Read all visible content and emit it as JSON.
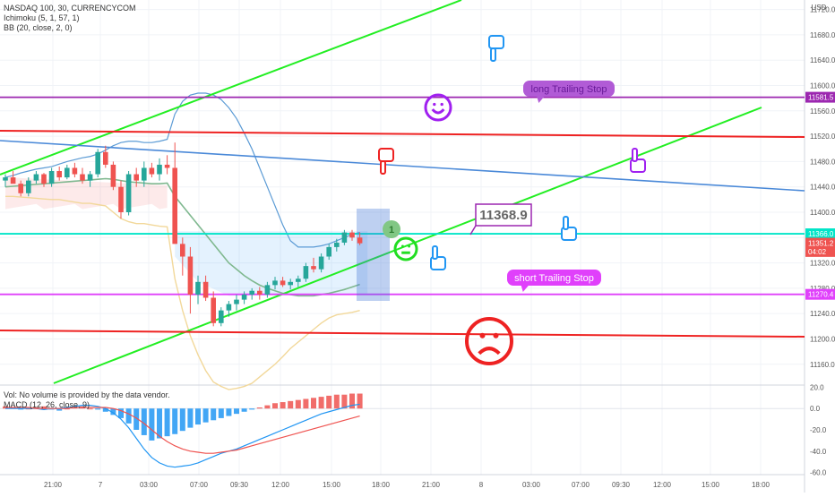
{
  "chart_data": {
    "type": "candlestick",
    "symbol_title": "NASDAQ 100, 30, CURRENCYCOM",
    "indicators": [
      "Ichimoku (5, 1, 57, 1)",
      "BB (20, close, 2, 0)"
    ],
    "currency": "USD",
    "y_ticks": [
      "11720.0",
      "11680.0",
      "11640.0",
      "11600.0",
      "11560.0",
      "11520.0",
      "11480.0",
      "11440.0",
      "11400.0",
      "11360.0",
      "11320.0",
      "11280.0",
      "11240.0",
      "11200.0",
      "11160.0"
    ],
    "y_range": [
      11130,
      11735
    ],
    "x_ticks": [
      "21:00",
      "7",
      "03:00",
      "07:00",
      "09:30",
      "12:00",
      "15:00",
      "18:00",
      "21:00",
      "8",
      "03:00",
      "07:00",
      "09:30",
      "12:00",
      "15:00",
      "18:00"
    ],
    "price_labels": [
      {
        "text": "11581.5",
        "value": 11581.5,
        "color": "#9c27b0"
      },
      {
        "text": "11366.0",
        "value": 11366,
        "color": "#00e5c8"
      },
      {
        "text": "11351.2",
        "value": 11351.2,
        "color": "#ef5350"
      },
      {
        "text": "04:02",
        "value": 11338,
        "color": "#ef5350"
      },
      {
        "text": "11270.4",
        "value": 11270.4,
        "color": "#e040fb"
      }
    ],
    "candles": [
      [
        11450,
        11460,
        11440,
        11455
      ],
      [
        11455,
        11465,
        11450,
        11445
      ],
      [
        11445,
        11450,
        11425,
        11430
      ],
      [
        11430,
        11455,
        11425,
        11450
      ],
      [
        11450,
        11465,
        11445,
        11460
      ],
      [
        11460,
        11462,
        11440,
        11445
      ],
      [
        11445,
        11470,
        11440,
        11465
      ],
      [
        11465,
        11472,
        11450,
        11455
      ],
      [
        11455,
        11475,
        11452,
        11470
      ],
      [
        11470,
        11478,
        11455,
        11460
      ],
      [
        11460,
        11470,
        11445,
        11450
      ],
      [
        11450,
        11465,
        11440,
        11460
      ],
      [
        11460,
        11500,
        11455,
        11495
      ],
      [
        11495,
        11505,
        11470,
        11475
      ],
      [
        11475,
        11480,
        11435,
        11440
      ],
      [
        11440,
        11450,
        11390,
        11400
      ],
      [
        11400,
        11465,
        11395,
        11460
      ],
      [
        11460,
        11470,
        11440,
        11450
      ],
      [
        11450,
        11480,
        11440,
        11470
      ],
      [
        11470,
        11478,
        11455,
        11460
      ],
      [
        11460,
        11485,
        11450,
        11475
      ],
      [
        11475,
        11490,
        11460,
        11470
      ],
      [
        11470,
        11510,
        11350,
        11350
      ],
      [
        11350,
        11360,
        11300,
        11330
      ],
      [
        11330,
        11345,
        11240,
        11270
      ],
      [
        11270,
        11300,
        11255,
        11290
      ],
      [
        11290,
        11300,
        11260,
        11265
      ],
      [
        11265,
        11275,
        11220,
        11225
      ],
      [
        11225,
        11250,
        11220,
        11245
      ],
      [
        11245,
        11260,
        11235,
        11255
      ],
      [
        11255,
        11270,
        11245,
        11262
      ],
      [
        11262,
        11275,
        11255,
        11270
      ],
      [
        11270,
        11280,
        11262,
        11276
      ],
      [
        11276,
        11282,
        11262,
        11270
      ],
      [
        11270,
        11290,
        11265,
        11285
      ],
      [
        11285,
        11298,
        11278,
        11292
      ],
      [
        11292,
        11298,
        11282,
        11285
      ],
      [
        11285,
        11295,
        11278,
        11290
      ],
      [
        11290,
        11300,
        11282,
        11295
      ],
      [
        11295,
        11320,
        11290,
        11315
      ],
      [
        11315,
        11328,
        11305,
        11310
      ],
      [
        11310,
        11335,
        11305,
        11330
      ],
      [
        11330,
        11350,
        11325,
        11345
      ],
      [
        11345,
        11358,
        11338,
        11352
      ],
      [
        11352,
        11372,
        11348,
        11368
      ],
      [
        11368,
        11372,
        11355,
        11360
      ],
      [
        11360,
        11368,
        11348,
        11351
      ]
    ],
    "annotations": [
      {
        "text": "long Trailing Stop",
        "color": "#b15bd6"
      },
      {
        "text": "short Trailing Stop",
        "color": "#e040fb"
      },
      {
        "text": "11368.9",
        "color": "#9c27b0"
      },
      {
        "text": "1",
        "color": "#4caf50"
      }
    ],
    "volume_note": "Vol: No volume is provided by the data vendor.",
    "macd_title": "MACD (12, 26, close, 9)",
    "macd_y_ticks": [
      "20.0",
      "0.0",
      "-20.0",
      "-40.0",
      "-60.0"
    ],
    "macd_range": [
      -62,
      22
    ],
    "macd_hist": [
      2,
      1,
      -1,
      0,
      1,
      2,
      -1,
      -2,
      0,
      1,
      2,
      0,
      -1,
      -3,
      -6,
      -9,
      -14,
      -20,
      -25,
      -30,
      -28,
      -26,
      -24,
      -21,
      -18,
      -15,
      -13,
      -11,
      -9,
      -7,
      -5,
      -3,
      -1,
      1,
      3,
      5,
      6,
      7,
      8,
      9,
      10,
      11,
      12,
      13,
      13,
      14,
      14
    ],
    "macd_line": [
      0,
      0,
      0,
      0,
      0,
      -1,
      0,
      0,
      1,
      2,
      3,
      3,
      2,
      0,
      -4,
      -10,
      -18,
      -28,
      -38,
      -46,
      -51,
      -54,
      -55,
      -54,
      -53,
      -51,
      -48,
      -45,
      -42,
      -40,
      -38,
      -35,
      -32,
      -29,
      -26,
      -23,
      -20,
      -17,
      -14,
      -11,
      -8,
      -5,
      -3,
      -1,
      1,
      3,
      4
    ],
    "signal_line": [
      1,
      1,
      1,
      1,
      0,
      0,
      0,
      0,
      0,
      1,
      1,
      1,
      1,
      1,
      0,
      -2,
      -5,
      -9,
      -14,
      -20,
      -26,
      -31,
      -35,
      -38,
      -40,
      -41,
      -42,
      -42,
      -41,
      -40,
      -39,
      -37,
      -35,
      -33,
      -31,
      -29,
      -27,
      -25,
      -23,
      -21,
      -19,
      -17,
      -15,
      -13,
      -11,
      -9,
      -7
    ]
  }
}
